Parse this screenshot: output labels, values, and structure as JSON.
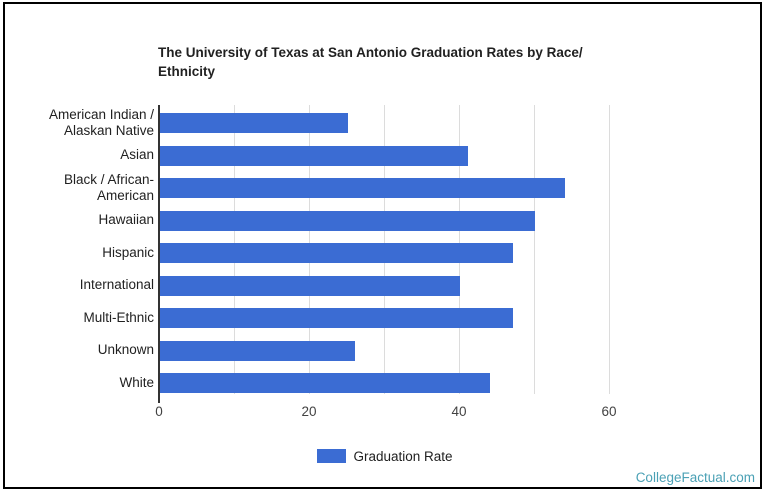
{
  "page": {
    "watermark": "CollegeFactual.com",
    "watermark_color": "#4BA1B5",
    "frame_border_color": "#000000",
    "background_color": "#ffffff"
  },
  "chart_data": {
    "type": "bar",
    "orientation": "horizontal",
    "title": "The University of Texas at San Antonio Graduation Rates by Race/Ethnicity",
    "title_lines": [
      "The University of Texas at San Antonio Graduation Rates by Race/",
      "Ethnicity"
    ],
    "categories": [
      "American Indian / Alaskan Native",
      "Asian",
      "Black / African-American",
      "Hawaiian",
      "Hispanic",
      "International",
      "Multi-Ethnic",
      "Unknown",
      "White"
    ],
    "category_label_lines": [
      [
        "American Indian /",
        "Alaskan Native"
      ],
      [
        "Asian"
      ],
      [
        "Black / African-",
        "American"
      ],
      [
        "Hawaiian"
      ],
      [
        "Hispanic"
      ],
      [
        "International"
      ],
      [
        "Multi-Ethnic"
      ],
      [
        "Unknown"
      ],
      [
        "White"
      ]
    ],
    "values": [
      25,
      41,
      54,
      50,
      47,
      40,
      47,
      26,
      44
    ],
    "series": [
      {
        "name": "Graduation Rate",
        "values": [
          25,
          41,
          54,
          50,
          47,
          40,
          47,
          26,
          44
        ]
      }
    ],
    "legend_label": "Graduation Rate",
    "legend_position": "bottom",
    "xlabel": "",
    "ylabel": "",
    "xlim": [
      0,
      73
    ],
    "x_ticks": [
      0,
      20,
      40,
      60
    ],
    "x_gridlines": [
      10,
      20,
      30,
      40,
      50,
      60
    ],
    "grid": true,
    "bar_color": "#3B6CD3",
    "axis_text_color": "#424242",
    "label_text_color": "#212121"
  }
}
